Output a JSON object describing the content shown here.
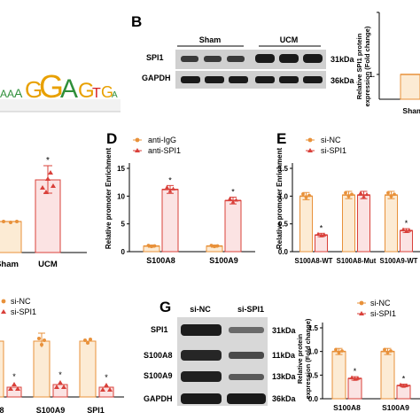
{
  "panel_letters": {
    "b": "B",
    "d": "D",
    "e": "E",
    "g": "G"
  },
  "colors": {
    "red": "#d9403a",
    "orange": "#e8913a",
    "pink_fill": "#fbe3e3",
    "orange_fill": "#fcebd4",
    "blot_bg": "#d8d8d8",
    "band": "#1a1a1a"
  },
  "logo_letters": {
    "a1": "A",
    "a2": "A",
    "a3": "A",
    "g1": "G",
    "g2": "G",
    "a4": "A",
    "g3": "G",
    "t": "T",
    "g4": "G",
    "a5": "A"
  },
  "panel_a_bottom": {
    "x_labels": [
      "Sham",
      "UCM"
    ],
    "star": "*"
  },
  "panel_b": {
    "groups": [
      "Sham",
      "UCM"
    ],
    "bands": [
      {
        "name": "SPI1",
        "kda": "31kDa"
      },
      {
        "name": "GAPDH",
        "kda": "36kDa"
      }
    ],
    "ylabel_1": "Relative SPI1 protein",
    "ylabel_2": "expression (Fold change)",
    "ytick": "1.",
    "x_label": "Sham"
  },
  "panel_d": {
    "legend": [
      "anti-IgG",
      "anti-SPI1"
    ],
    "ylabel": "Relative promoter Enrichment",
    "yticks": [
      "0",
      "5",
      "10",
      "15"
    ],
    "star": "*"
  },
  "panel_e": {
    "legend": [
      "si-NC",
      "si-SPI1"
    ],
    "ylabel": "Relative promoter Enrichment",
    "yticks": [
      "0.0",
      "0.5",
      "1.0",
      "1.5"
    ],
    "star": "*"
  },
  "panel_f_partial": {
    "legend": [
      "si-NC",
      "si-SPI1"
    ],
    "x_labels": [
      "S100A9",
      "SPI1"
    ],
    "x_label_left_partial": "8",
    "star": "*"
  },
  "panel_g": {
    "groups": [
      "si-NC",
      "si-SPI1"
    ],
    "bands": [
      {
        "name": "SPI1",
        "kda": "31kDa"
      },
      {
        "name": "S100A8",
        "kda": "11kDa"
      },
      {
        "name": "S100A9",
        "kda": "13kDa"
      },
      {
        "name": "GAPDH",
        "kda": "36kDa"
      }
    ],
    "legend": [
      "si-NC",
      "si-SPI1"
    ],
    "ylabel_1": "Relative protein",
    "ylabel_2": "expression (Fold change)",
    "yticks": [
      "0.0",
      "0.5",
      "1.0",
      "1.5"
    ],
    "x_labels": [
      "S100A8",
      "S100A9"
    ],
    "star": "*"
  },
  "chart_data": [
    {
      "type": "bar",
      "panel": "D",
      "categories": [
        "S100A8",
        "S100A9"
      ],
      "ylabel": "Relative promoter Enrichment",
      "ylim": [
        0,
        15
      ],
      "series": [
        {
          "name": "anti-IgG",
          "values": [
            1.0,
            1.0
          ]
        },
        {
          "name": "anti-SPI1",
          "values": [
            11.2,
            9.2
          ]
        }
      ]
    },
    {
      "type": "bar",
      "panel": "E",
      "categories": [
        "S100A8-WT",
        "S100A8-Mut",
        "S100A9-WT"
      ],
      "ylabel": "Relative promoter Enrichment",
      "ylim": [
        0,
        1.5
      ],
      "series": [
        {
          "name": "si-NC",
          "values": [
            1.0,
            1.02,
            1.02
          ]
        },
        {
          "name": "si-SPI1",
          "values": [
            0.3,
            1.02,
            0.38
          ]
        }
      ]
    },
    {
      "type": "bar",
      "panel": "G",
      "categories": [
        "S100A8",
        "S100A9"
      ],
      "ylabel": "Relative protein expression (Fold change)",
      "ylim": [
        0,
        1.5
      ],
      "series": [
        {
          "name": "si-NC",
          "values": [
            1.0,
            1.0
          ]
        },
        {
          "name": "si-SPI1",
          "values": [
            0.43,
            0.28
          ]
        }
      ]
    }
  ]
}
